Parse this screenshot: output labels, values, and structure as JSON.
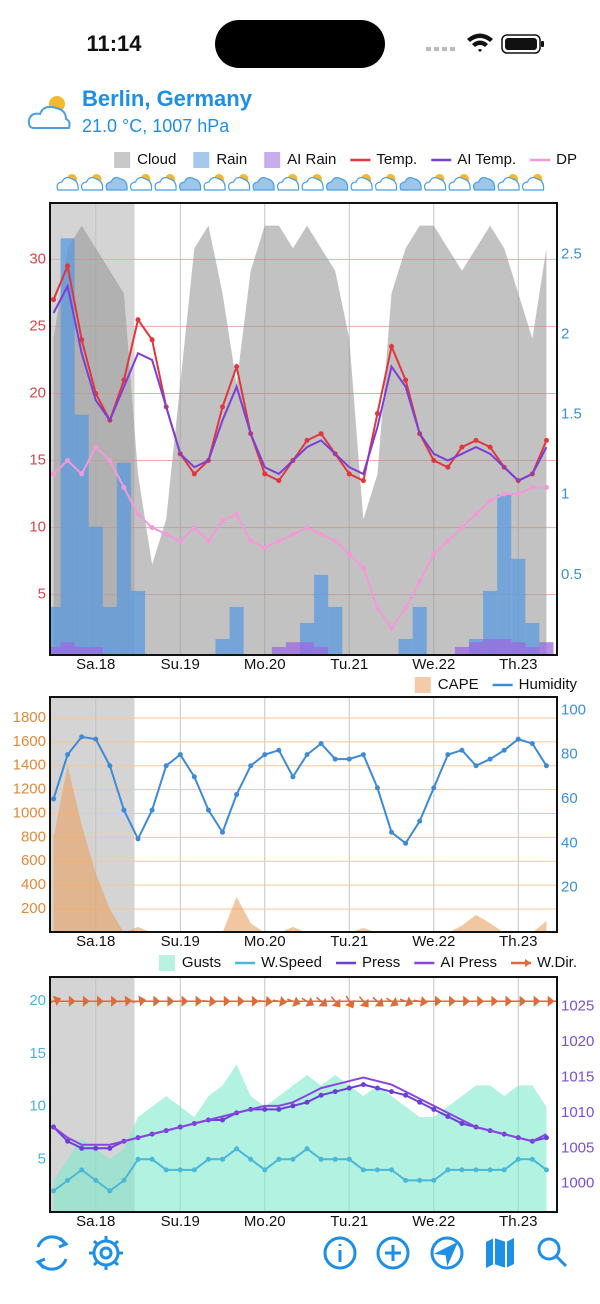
{
  "status": {
    "time": "11:14"
  },
  "header": {
    "title": "Berlin, Germany",
    "subtitle": "21.0 °C, 1007 hPa"
  },
  "chart_data": [
    {
      "type": "line",
      "x": [
        -12,
        -8,
        -4,
        0,
        4,
        8,
        12,
        16,
        20,
        24,
        28,
        32,
        36,
        40,
        44,
        48,
        52,
        56,
        60,
        64,
        68,
        72,
        76,
        80,
        84,
        88,
        92,
        96,
        100,
        104,
        108,
        112,
        116,
        120,
        124,
        128
      ],
      "xlim": [
        -13,
        131
      ],
      "xticks": [
        {
          "value": 0,
          "label": "Sa.18"
        },
        {
          "value": 24,
          "label": "Su.19"
        },
        {
          "value": 48,
          "label": "Mo.20"
        },
        {
          "value": 72,
          "label": "Tu.21"
        },
        {
          "value": 96,
          "label": "We.22"
        },
        {
          "value": 120,
          "label": "Th.23"
        }
      ],
      "past_until": 11,
      "ylim": [
        0.5,
        34.2
      ],
      "yticks": [
        5,
        10,
        15,
        20,
        25,
        30
      ],
      "ytick_color": "#d9474b",
      "y2lim": [
        0,
        2.82
      ],
      "y2ticks": [
        0.5,
        1,
        1.5,
        2,
        2.5
      ],
      "y2tick_color": "#3b8fd6",
      "cloudlim": [
        0,
        100
      ],
      "grid": true,
      "grid_color": "#f2a7a7",
      "series": [
        {
          "name": "Cloud",
          "color": "#9a9a9a",
          "style": "area",
          "axis": "cloud",
          "values": [
            70,
            90,
            95,
            90,
            85,
            80,
            40,
            20,
            30,
            60,
            90,
            95,
            80,
            60,
            85,
            95,
            95,
            90,
            95,
            90,
            85,
            70,
            30,
            40,
            80,
            90,
            95,
            95,
            90,
            85,
            90,
            95,
            90,
            80,
            70,
            90
          ]
        },
        {
          "name": "Rain",
          "color": "#5b9bdf",
          "style": "bar",
          "axis": "y2",
          "values": [
            0.3,
            2.6,
            1.5,
            0.8,
            0.3,
            1.2,
            0.4,
            0,
            0,
            0,
            0,
            0,
            0.1,
            0.3,
            0,
            0,
            0,
            0,
            0.2,
            0.5,
            0.3,
            0,
            0,
            0,
            0,
            0.1,
            0.3,
            0,
            0,
            0,
            0.1,
            0.4,
            1.0,
            0.6,
            0.2,
            0
          ]
        },
        {
          "name": "AI Rain",
          "color": "#9a6ae0",
          "style": "bar",
          "axis": "y2",
          "values": [
            0.05,
            0.08,
            0.05,
            0.05,
            0,
            0,
            0,
            0,
            0,
            0,
            0,
            0,
            0,
            0,
            0,
            0,
            0.05,
            0.08,
            0.08,
            0.05,
            0,
            0,
            0,
            0,
            0,
            0,
            0,
            0,
            0,
            0.05,
            0.08,
            0.1,
            0.1,
            0.08,
            0.05,
            0.08
          ]
        },
        {
          "name": "Temp.",
          "color": "#e0363c",
          "style": "line",
          "markers": true,
          "values": [
            27,
            29.5,
            24,
            20,
            18,
            21,
            25.5,
            24,
            19,
            15.5,
            14,
            15,
            19,
            22,
            17,
            14,
            13.5,
            15,
            16.5,
            17,
            15.5,
            14,
            13.5,
            18.5,
            23.5,
            21,
            17,
            15,
            14.5,
            16,
            16.5,
            16,
            14.5,
            13.5,
            14,
            16.5
          ]
        },
        {
          "name": "AI Temp.",
          "color": "#7b3fd6",
          "style": "line",
          "values": [
            26,
            28,
            23,
            19.5,
            18,
            20.5,
            23,
            22.5,
            19,
            15.5,
            14.5,
            15,
            18,
            20.5,
            17,
            14.5,
            14,
            15,
            16,
            16.5,
            15.5,
            14.5,
            14,
            17.5,
            22,
            20.5,
            17,
            15.5,
            15,
            15.5,
            16,
            15.5,
            14.5,
            13.5,
            14,
            16
          ]
        },
        {
          "name": "DP",
          "color": "#f29ad8",
          "style": "line",
          "markers": true,
          "values": [
            14,
            15,
            14,
            16,
            15,
            13,
            11,
            10,
            9.5,
            9,
            10,
            9,
            10.5,
            11,
            9,
            8.5,
            9,
            9.5,
            10,
            9.5,
            9,
            8,
            7,
            4,
            2.5,
            4,
            6,
            8,
            9,
            10,
            11,
            12,
            12.5,
            12.5,
            13,
            13
          ]
        }
      ]
    },
    {
      "type": "line",
      "x": [
        -12,
        -8,
        -4,
        0,
        4,
        8,
        12,
        16,
        20,
        24,
        28,
        32,
        36,
        40,
        44,
        48,
        52,
        56,
        60,
        64,
        68,
        72,
        76,
        80,
        84,
        88,
        92,
        96,
        100,
        104,
        108,
        112,
        116,
        120,
        124,
        128
      ],
      "xlim": [
        -13,
        131
      ],
      "xticks": [
        {
          "value": 0,
          "label": "Sa.18"
        },
        {
          "value": 24,
          "label": "Su.19"
        },
        {
          "value": 48,
          "label": "Mo.20"
        },
        {
          "value": 72,
          "label": "Tu.21"
        },
        {
          "value": 96,
          "label": "We.22"
        },
        {
          "value": 120,
          "label": "Th.23"
        }
      ],
      "past_until": 11,
      "ylim": [
        7,
        1976
      ],
      "yticks": [
        200,
        400,
        600,
        800,
        1000,
        1200,
        1400,
        1600,
        1800
      ],
      "ytick_color": "#e08a3c",
      "y2lim": [
        0,
        106
      ],
      "y2ticks": [
        20,
        40,
        60,
        80,
        100
      ],
      "y2tick_color": "#3b8fd6",
      "grid": true,
      "grid_color": "#f5c79a",
      "series": [
        {
          "name": "CAPE",
          "color": "#e8a060",
          "style": "area",
          "values": [
            800,
            1400,
            900,
            500,
            200,
            0,
            50,
            0,
            0,
            0,
            0,
            0,
            0,
            300,
            80,
            0,
            0,
            50,
            0,
            0,
            0,
            0,
            40,
            0,
            0,
            0,
            0,
            0,
            0,
            60,
            150,
            80,
            0,
            0,
            0,
            100
          ]
        },
        {
          "name": "Humidity",
          "color": "#3d8ad6",
          "style": "line",
          "axis": "y2",
          "markers": true,
          "values": [
            60,
            80,
            88,
            87,
            75,
            55,
            42,
            55,
            75,
            80,
            70,
            55,
            45,
            62,
            75,
            80,
            82,
            70,
            80,
            85,
            78,
            78,
            80,
            65,
            45,
            40,
            50,
            65,
            80,
            82,
            75,
            78,
            82,
            87,
            85,
            75
          ]
        }
      ]
    },
    {
      "type": "line",
      "x": [
        -12,
        -8,
        -4,
        0,
        4,
        8,
        12,
        16,
        20,
        24,
        28,
        32,
        36,
        40,
        44,
        48,
        52,
        56,
        60,
        64,
        68,
        72,
        76,
        80,
        84,
        88,
        92,
        96,
        100,
        104,
        108,
        112,
        116,
        120,
        124,
        128
      ],
      "xlim": [
        -13,
        131
      ],
      "xticks": [
        {
          "value": 0,
          "label": "Sa.18"
        },
        {
          "value": 24,
          "label": "Su.19"
        },
        {
          "value": 48,
          "label": "Mo.20"
        },
        {
          "value": 72,
          "label": "Tu.21"
        },
        {
          "value": 96,
          "label": "We.22"
        },
        {
          "value": 120,
          "label": "Th.23"
        }
      ],
      "past_until": 11,
      "ylim": [
        0,
        22.3
      ],
      "yticks": [
        5,
        10,
        15,
        20
      ],
      "ytick_color": "#4ab3e6",
      "y2lim": [
        996,
        1029.2
      ],
      "y2ticks": [
        1000,
        1005,
        1010,
        1015,
        1020,
        1025
      ],
      "y2tick_color": "#7a4fd6",
      "grid": false,
      "series": [
        {
          "name": "Gusts",
          "color": "#7eeacb",
          "style": "area",
          "values": [
            3,
            5,
            7,
            6,
            5,
            6,
            9,
            10,
            11,
            10,
            9,
            11,
            12,
            14,
            11,
            10,
            11,
            12,
            13,
            12,
            13,
            12,
            11,
            12,
            11,
            10,
            9,
            9,
            10,
            11,
            12,
            12,
            11,
            12,
            12,
            10
          ]
        },
        {
          "name": "W.Speed",
          "color": "#4ab8d8",
          "style": "line",
          "markers": true,
          "values": [
            2,
            3,
            4,
            3,
            2,
            3,
            5,
            5,
            4,
            4,
            4,
            5,
            5,
            6,
            5,
            4,
            5,
            5,
            6,
            5,
            5,
            5,
            4,
            4,
            4,
            3,
            3,
            3,
            4,
            4,
            4,
            4,
            4,
            5,
            5,
            4
          ]
        },
        {
          "name": "Press",
          "color": "#6a3fd6",
          "style": "line",
          "axis": "y2",
          "markers": true,
          "values": [
            1008,
            1006,
            1005,
            1005,
            1005,
            1006,
            1006.5,
            1007,
            1007.5,
            1008,
            1008.5,
            1009,
            1009,
            1010,
            1010.5,
            1010.5,
            1010.5,
            1011,
            1011.5,
            1012.5,
            1013,
            1013.5,
            1014,
            1013.5,
            1013,
            1012.5,
            1011.5,
            1010.5,
            1009.5,
            1008.5,
            1008,
            1007.5,
            1007,
            1006.5,
            1006,
            1006.5
          ]
        },
        {
          "name": "AI Press",
          "color": "#8a44e0",
          "style": "line",
          "axis": "y2",
          "values": [
            1008,
            1006.5,
            1005.5,
            1005.5,
            1005.5,
            1006,
            1006.5,
            1007,
            1007.5,
            1008,
            1008.5,
            1009,
            1009.5,
            1010,
            1010.5,
            1011,
            1011,
            1011.5,
            1012.5,
            1013.5,
            1014,
            1014.5,
            1015,
            1014.5,
            1014,
            1013,
            1012,
            1011,
            1010,
            1009,
            1008,
            1007.5,
            1007,
            1006.5,
            1006,
            1007
          ]
        },
        {
          "name": "W.Dir.",
          "color": "#e06a3a",
          "style": "arrow",
          "level": 20,
          "values": [
            250,
            270,
            270,
            270,
            270,
            265,
            260,
            270,
            270,
            270,
            270,
            275,
            270,
            270,
            270,
            275,
            280,
            290,
            300,
            310,
            320,
            330,
            320,
            310,
            300,
            290,
            280,
            270,
            270,
            270,
            270,
            270,
            270,
            270,
            270,
            270
          ]
        }
      ]
    }
  ]
}
